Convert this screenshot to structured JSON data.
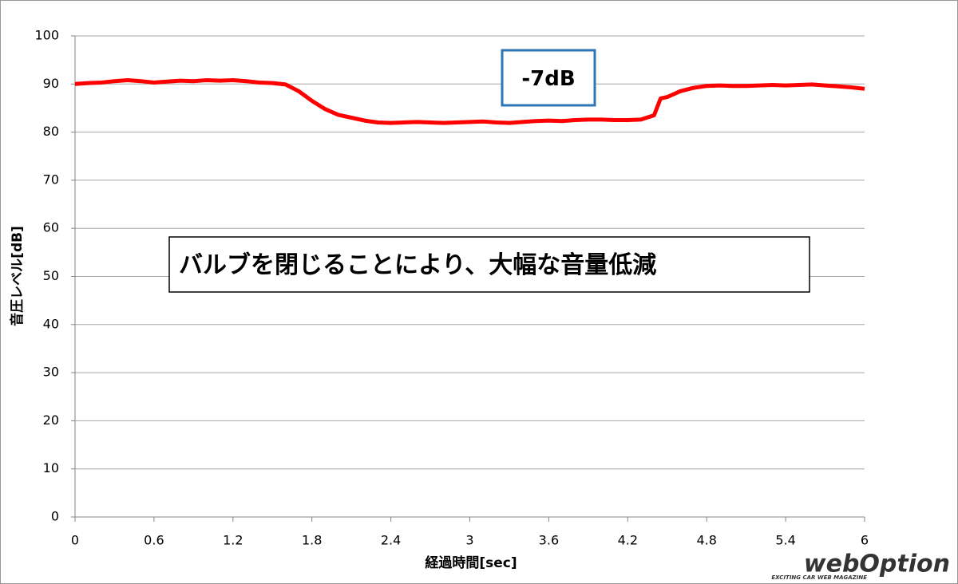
{
  "chart_data": {
    "type": "line",
    "x_label": "経過時間[sec]",
    "y_label": "音圧レベル[dB]",
    "x": [
      0,
      0.1,
      0.2,
      0.3,
      0.4,
      0.5,
      0.6,
      0.7,
      0.8,
      0.9,
      1.0,
      1.1,
      1.2,
      1.3,
      1.4,
      1.5,
      1.6,
      1.7,
      1.8,
      1.9,
      2.0,
      2.1,
      2.2,
      2.3,
      2.4,
      2.5,
      2.6,
      2.7,
      2.8,
      2.9,
      3.0,
      3.1,
      3.2,
      3.3,
      3.4,
      3.5,
      3.6,
      3.7,
      3.8,
      3.9,
      4.0,
      4.1,
      4.2,
      4.3,
      4.4,
      4.45,
      4.5,
      4.6,
      4.7,
      4.8,
      4.9,
      5.0,
      5.1,
      5.2,
      5.3,
      5.4,
      5.5,
      5.6,
      5.7,
      5.8,
      5.9,
      6.0
    ],
    "series": [
      {
        "color": "#ff0000",
        "values": [
          90,
          90.2,
          90.3,
          90.6,
          90.8,
          90.6,
          90.3,
          90.5,
          90.7,
          90.6,
          90.8,
          90.7,
          90.8,
          90.6,
          90.3,
          90.2,
          89.9,
          88.5,
          86.5,
          84.8,
          83.6,
          83.0,
          82.4,
          82.0,
          81.9,
          82.0,
          82.1,
          82.0,
          81.9,
          82.0,
          82.1,
          82.2,
          82.0,
          81.9,
          82.1,
          82.3,
          82.4,
          82.3,
          82.5,
          82.6,
          82.6,
          82.5,
          82.5,
          82.6,
          83.5,
          87.0,
          87.3,
          88.5,
          89.2,
          89.6,
          89.7,
          89.6,
          89.6,
          89.7,
          89.8,
          89.7,
          89.8,
          89.9,
          89.7,
          89.5,
          89.3,
          89.0
        ]
      }
    ],
    "xlim": [
      0,
      6
    ],
    "xticks": [
      0,
      0.6,
      1.2,
      1.8,
      2.4,
      3,
      3.6,
      4.2,
      4.8,
      5.4,
      6
    ],
    "ylim": [
      0,
      100
    ],
    "yticks": [
      0,
      10,
      20,
      30,
      40,
      50,
      60,
      70,
      80,
      90,
      100
    ],
    "grid": true,
    "annotations": [
      {
        "text": "-7dB",
        "border": "#2e75b6"
      },
      {
        "text": "バルブを閉じることにより、大幅な音量低減",
        "border": "#000000"
      }
    ],
    "watermark": "webOption",
    "watermark_sub": "EXCITING CAR WEB MAGAZINE"
  }
}
